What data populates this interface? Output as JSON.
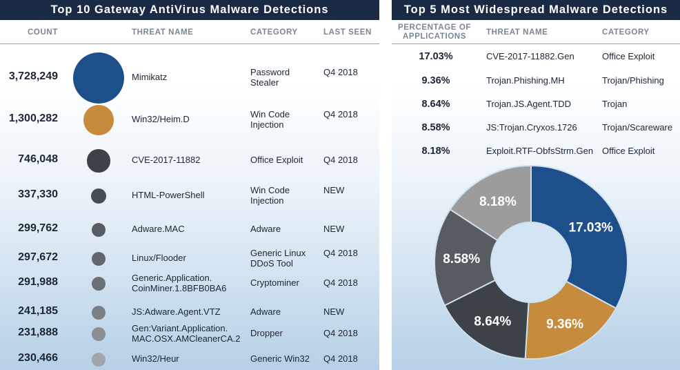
{
  "left": {
    "title": "Top 10 Gateway AntiVirus Malware Detections",
    "headers": {
      "count": "COUNT",
      "threat": "THREAT NAME",
      "category": "CATEGORY",
      "last_seen": "LAST SEEN"
    },
    "rows": [
      {
        "count": "3,728,249",
        "threat": "Mimikatz",
        "category": "Password Stealer",
        "last_seen": "Q4 2018",
        "color": "#1d4f8b"
      },
      {
        "count": "1,300,282",
        "threat": "Win32/Heim.D",
        "category": "Win Code Injection",
        "last_seen": "Q4 2018",
        "color": "#c68b3c"
      },
      {
        "count": "746,048",
        "threat": "CVE-2017-11882",
        "category": "Office Exploit",
        "last_seen": "Q4 2018",
        "color": "#3d4148"
      },
      {
        "count": "337,330",
        "threat": "HTML-PowerShell",
        "category": "Win Code Injection",
        "last_seen": "NEW",
        "color": "#494d54"
      },
      {
        "count": "299,762",
        "threat": "Adware.MAC",
        "category": "Adware",
        "last_seen": "NEW",
        "color": "#585c62"
      },
      {
        "count": "297,672",
        "threat": "Linux/Flooder",
        "category": "Generic Linux DDoS Tool",
        "last_seen": "Q4 2018",
        "color": "#63676d"
      },
      {
        "count": "291,988",
        "threat": "Generic.Application. CoinMiner.1.8BFB0BA6",
        "category": "Cryptominer",
        "last_seen": "Q4 2018",
        "color": "#6d7176"
      },
      {
        "count": "241,185",
        "threat": "JS:Adware.Agent.VTZ",
        "category": "Adware",
        "last_seen": "NEW",
        "color": "#7b7e83"
      },
      {
        "count": "231,888",
        "threat": "Gen:Variant.Application. MAC.OSX.AMCleanerCA.2",
        "category": "Dropper",
        "last_seen": "Q4 2018",
        "color": "#8b8e92"
      },
      {
        "count": "230,466",
        "threat": "Win32/Heur",
        "category": "Generic Win32",
        "last_seen": "Q4 2018",
        "color": "#a2a5a9"
      }
    ]
  },
  "right": {
    "title": "Top 5 Most Widespread Malware Detections",
    "headers": {
      "pct_line1": "PERCENTAGE OF",
      "pct_line2": "APPLICATIONS",
      "threat": "THREAT NAME",
      "category": "CATEGORY"
    },
    "rows": [
      {
        "pct": "17.03%",
        "threat": "CVE-2017-11882.Gen",
        "category": "Office Exploit"
      },
      {
        "pct": "9.36%",
        "threat": "Trojan.Phishing.MH",
        "category": "Trojan/Phishing"
      },
      {
        "pct": "8.64%",
        "threat": "Trojan.JS.Agent.TDD",
        "category": "Trojan"
      },
      {
        "pct": "8.58%",
        "threat": "JS:Trojan.Cryxos.1726",
        "category": "Trojan/Scareware"
      },
      {
        "pct": "8.18%",
        "threat": "Exploit.RTF-ObfsStrm.Gen",
        "category": "Office Exploit"
      }
    ]
  },
  "chart_data": [
    {
      "type": "bubble",
      "title": "Top 10 Gateway AntiVirus Malware Detections",
      "categories": [
        "Mimikatz",
        "Win32/Heim.D",
        "CVE-2017-11882",
        "HTML-PowerShell",
        "Adware.MAC",
        "Linux/Flooder",
        "Generic.Application. CoinMiner.1.8BFB0BA6",
        "JS:Adware.Agent.VTZ",
        "Gen:Variant.Application. MAC.OSX.AMCleanerCA.2",
        "Win32/Heur"
      ],
      "values": [
        3728249,
        1300282,
        746048,
        337330,
        299762,
        297672,
        291988,
        241185,
        231888,
        230466
      ]
    },
    {
      "type": "pie",
      "title": "Top 5 Most Widespread Malware Detections",
      "categories": [
        "CVE-2017-11882.Gen",
        "Trojan.Phishing.MH",
        "Trojan.JS.Agent.TDD",
        "JS:Trojan.Cryxos.1726",
        "Exploit.RTF-ObfsStrm.Gen"
      ],
      "values": [
        17.03,
        9.36,
        8.64,
        8.58,
        8.18
      ],
      "labels": [
        "17.03%",
        "9.36%",
        "8.64%",
        "8.58%",
        "8.18%"
      ],
      "colors": [
        "#1d4f8b",
        "#c68b3c",
        "#3d4148",
        "#585c62",
        "#9c9c9c"
      ],
      "donut": true
    }
  ]
}
